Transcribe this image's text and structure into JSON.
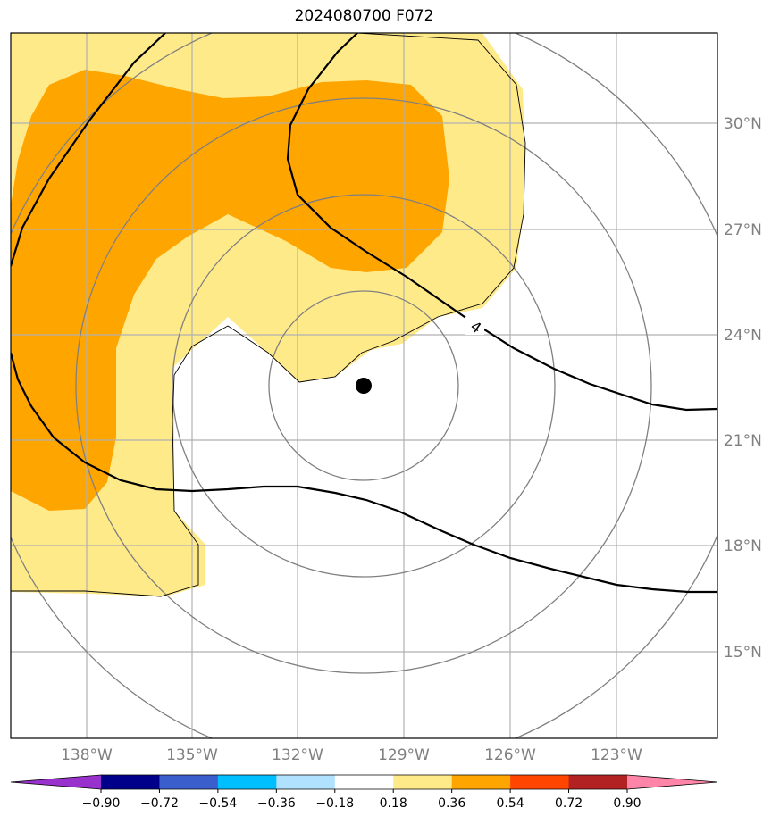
{
  "title": "2024080700 F072",
  "map": {
    "lon_labels": [
      "138°W",
      "135°W",
      "132°W",
      "129°W",
      "126°W",
      "123°W"
    ],
    "lat_labels": [
      "30°N",
      "27°N",
      "24°N",
      "21°N",
      "18°N",
      "15°N"
    ],
    "contour_label": "4",
    "shading_colors": {
      "light": "#ffea8a",
      "dark": "#ffa500"
    },
    "contour_color": "#000000",
    "ring_color": "#808080",
    "grid_color": "#b0b0b0",
    "center_marker": "storm-center-dot"
  },
  "colorbar": {
    "tick_labels": [
      "−0.90",
      "−0.72",
      "−0.54",
      "−0.36",
      "−0.18",
      "0.18",
      "0.36",
      "0.54",
      "0.72",
      "0.90"
    ],
    "colors": [
      "#9932cc",
      "#00008b",
      "#3a5fcd",
      "#00bfff",
      "#b0e2ff",
      "#ffffff",
      "#ffea8a",
      "#ffa500",
      "#ff4500",
      "#b22222",
      "#ff85a8"
    ]
  }
}
